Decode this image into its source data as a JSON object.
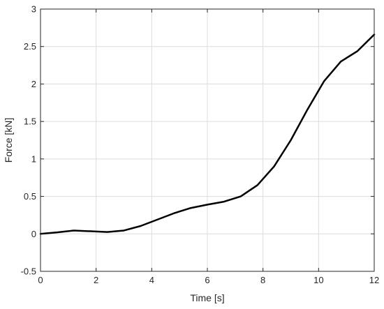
{
  "chart_data": {
    "type": "line",
    "title": "",
    "xlabel": "Time [s]",
    "ylabel": "Force [kN]",
    "xlim": [
      0,
      12
    ],
    "ylim": [
      -0.5,
      3
    ],
    "xticks": [
      0,
      2,
      4,
      6,
      8,
      10,
      12
    ],
    "xtick_labels": [
      "0",
      "2",
      "4",
      "6",
      "8",
      "10",
      "12"
    ],
    "yticks": [
      -0.5,
      0,
      0.5,
      1,
      1.5,
      2,
      2.5,
      3
    ],
    "ytick_labels": [
      "-0.5",
      "0",
      "0.5",
      "1",
      "1.5",
      "2",
      "2.5",
      "3"
    ],
    "grid": true,
    "legend": "none",
    "series": [
      {
        "color": "#000000",
        "x": [
          0,
          0.6,
          1.2,
          1.8,
          2.4,
          3.0,
          3.6,
          4.2,
          4.8,
          5.4,
          6.0,
          6.6,
          7.2,
          7.8,
          8.4,
          9.0,
          9.6,
          10.2,
          10.8,
          11.4,
          12.0
        ],
        "y": [
          0,
          0.02,
          0.045,
          0.035,
          0.025,
          0.045,
          0.105,
          0.19,
          0.275,
          0.345,
          0.39,
          0.43,
          0.5,
          0.65,
          0.9,
          1.25,
          1.66,
          2.04,
          2.3,
          2.44,
          2.66
        ]
      }
    ]
  }
}
